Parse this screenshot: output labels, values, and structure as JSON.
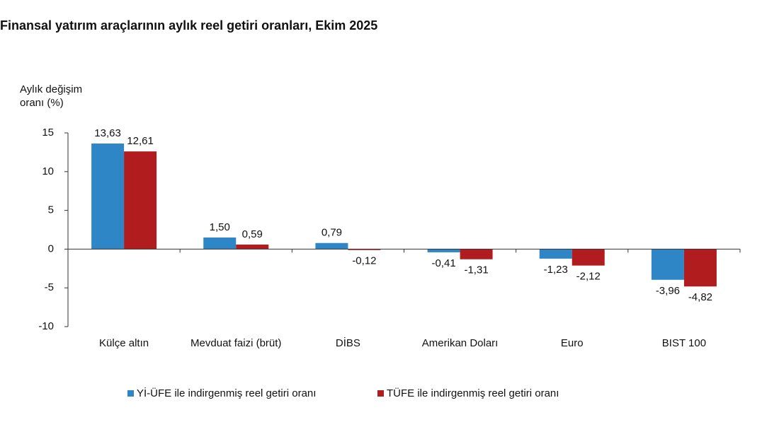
{
  "chart_data": {
    "type": "bar",
    "title": "Finansal yatırım araçlarının aylık reel getiri oranları, Ekim 2025",
    "y_label": "Aylık değişim oranı (%)",
    "categories": [
      "Külçe altın",
      "Mevduat faizi (brüt)",
      "DİBS",
      "Amerikan Doları",
      "Euro",
      "BIST 100"
    ],
    "series": [
      {
        "name": "Yİ-ÜFE ile indirgenmiş reel getiri oranı",
        "color": "#2f86c6",
        "values": [
          13.63,
          1.5,
          0.79,
          -0.41,
          -1.23,
          -3.96
        ],
        "value_labels": [
          "13,63",
          "1,50",
          "0,79",
          "-0,41",
          "-1,23",
          "-3,96"
        ]
      },
      {
        "name": "TÜFE ile indirgenmiş reel getiri oranı",
        "color": "#b11c1f",
        "values": [
          12.61,
          0.59,
          -0.12,
          -1.31,
          -2.12,
          -4.82
        ],
        "value_labels": [
          "12,61",
          "0,59",
          "-0,12",
          "-1,31",
          "-2,12",
          "-4,82"
        ]
      }
    ],
    "ylim": [
      -10,
      15
    ],
    "yticks": [
      -10,
      -5,
      0,
      5,
      10,
      15
    ],
    "legend": "bottom"
  }
}
